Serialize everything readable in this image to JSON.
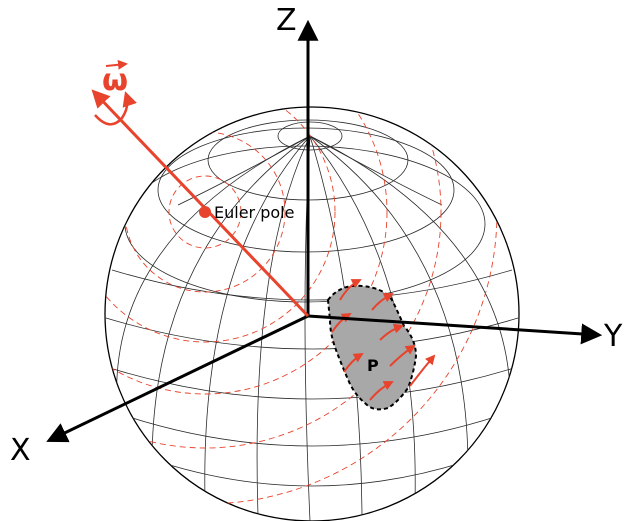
{
  "diagram": {
    "axes": {
      "z": "Z",
      "y": "Y",
      "x": "X"
    },
    "rotation_vector": "ω",
    "euler_pole": "Euler pole",
    "plate": "P"
  },
  "colors": {
    "ink": "#000000",
    "rotation": "#e8432c",
    "plate_fill": "#a8a8a8",
    "grid": "#2a2a2a"
  },
  "icons": {
    "rotation_arrow": "curved-arrow-icon",
    "vector_arrow": "arrow-icon"
  }
}
